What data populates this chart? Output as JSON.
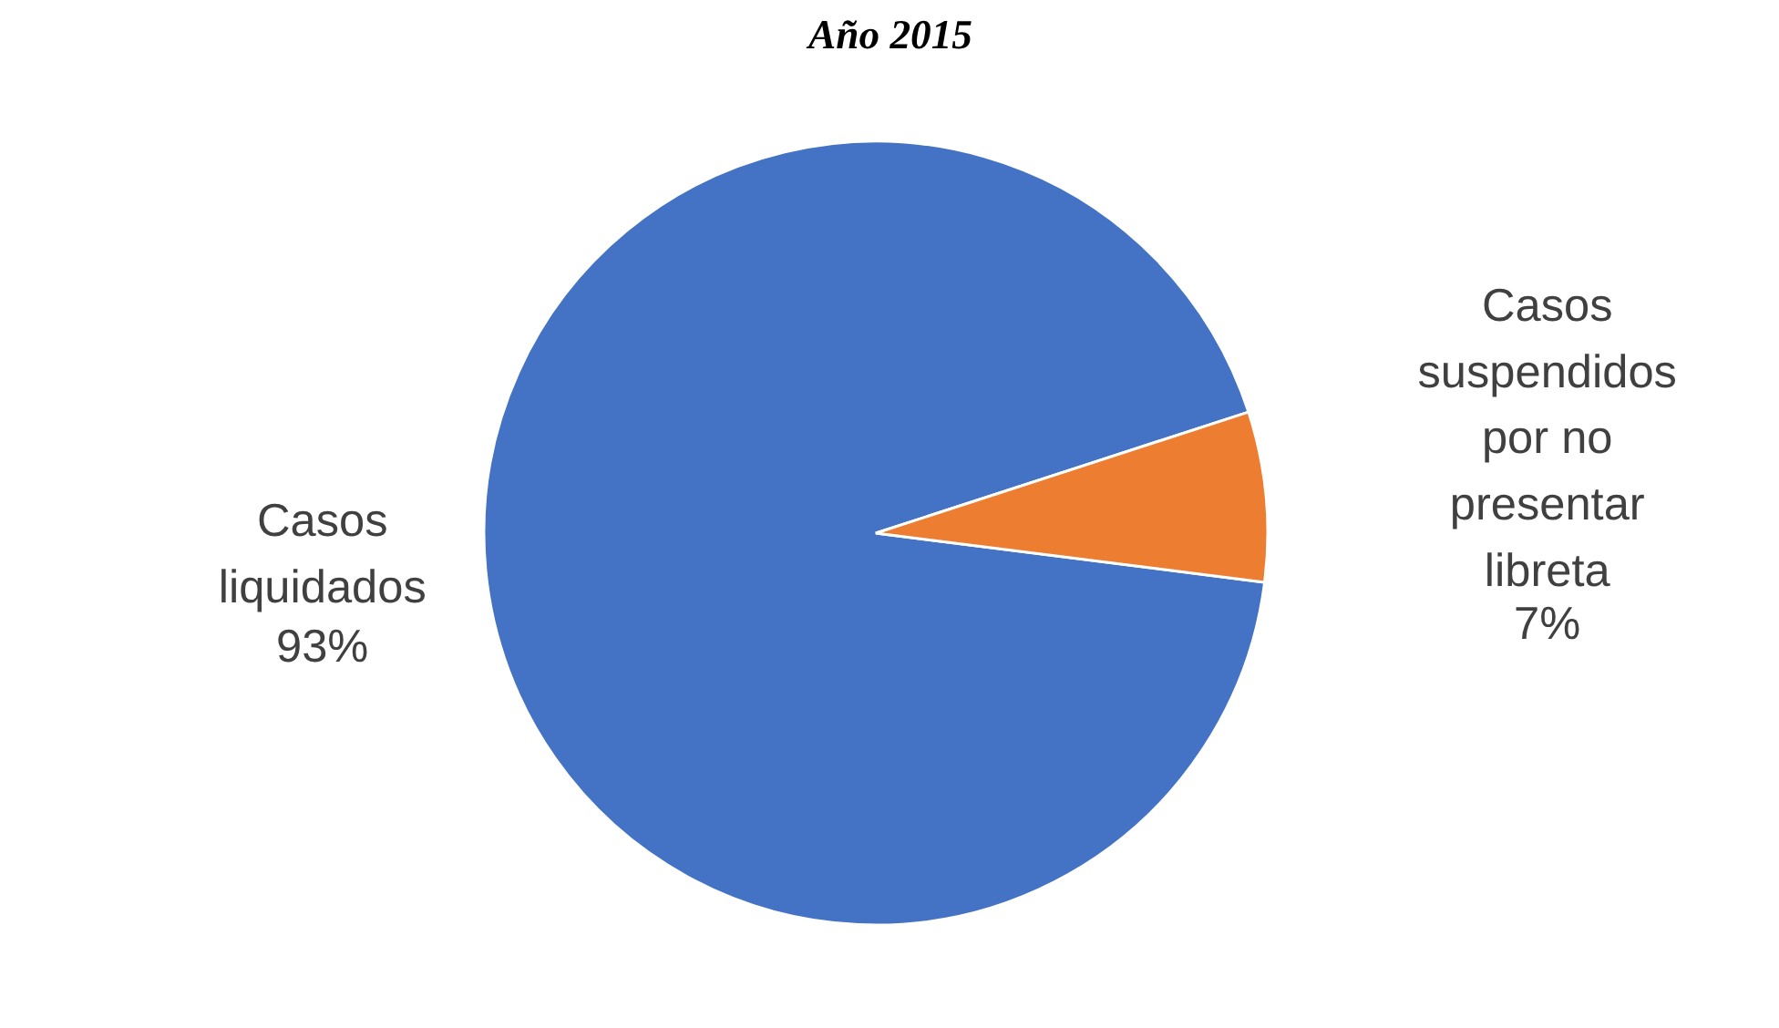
{
  "chart_data": {
    "type": "pie",
    "title": "Año 2015",
    "categories": [
      "Casos liquidados",
      "Casos suspendidos por no presentar libreta"
    ],
    "values": [
      93,
      7
    ],
    "value_labels": [
      "93%",
      "7%"
    ],
    "colors": [
      "#4472c4",
      "#ed7d31"
    ]
  }
}
